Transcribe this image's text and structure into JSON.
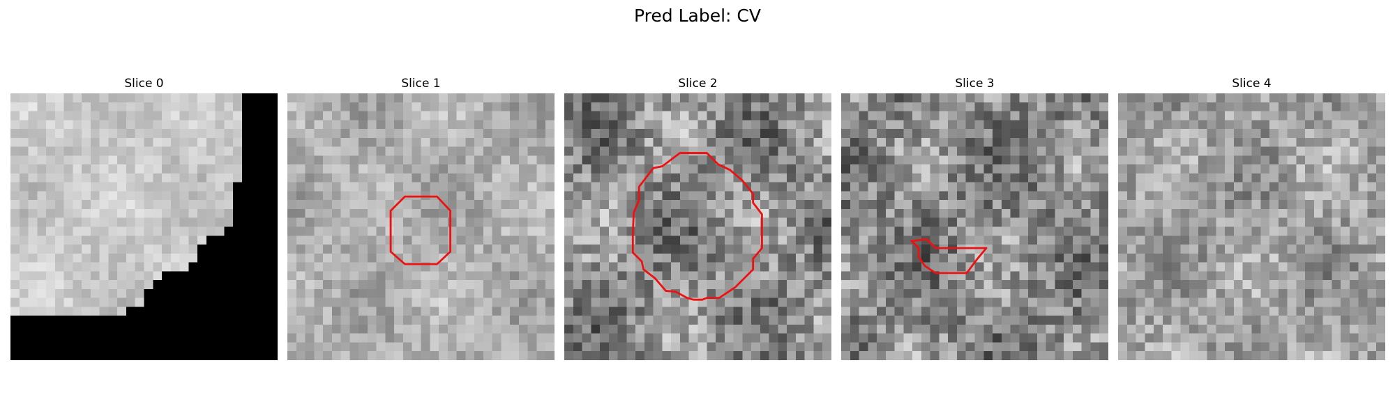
{
  "figure": {
    "title": "Pred Label: CV"
  },
  "slices": [
    {
      "label": "Slice 0",
      "base_tone": 200,
      "contrast": 22,
      "seed": 11,
      "has_mask": true,
      "has_contour": false
    },
    {
      "label": "Slice 1",
      "base_tone": 175,
      "contrast": 30,
      "seed": 23,
      "has_mask": false,
      "has_contour": true
    },
    {
      "label": "Slice 2",
      "base_tone": 140,
      "contrast": 55,
      "seed": 37,
      "has_mask": false,
      "has_contour": true
    },
    {
      "label": "Slice 3",
      "base_tone": 135,
      "contrast": 55,
      "seed": 41,
      "has_mask": false,
      "has_contour": true
    },
    {
      "label": "Slice 4",
      "base_tone": 160,
      "contrast": 42,
      "seed": 53,
      "has_mask": false,
      "has_contour": false
    }
  ],
  "colors": {
    "contour": "#ee1111",
    "background_mask": "#000000"
  }
}
